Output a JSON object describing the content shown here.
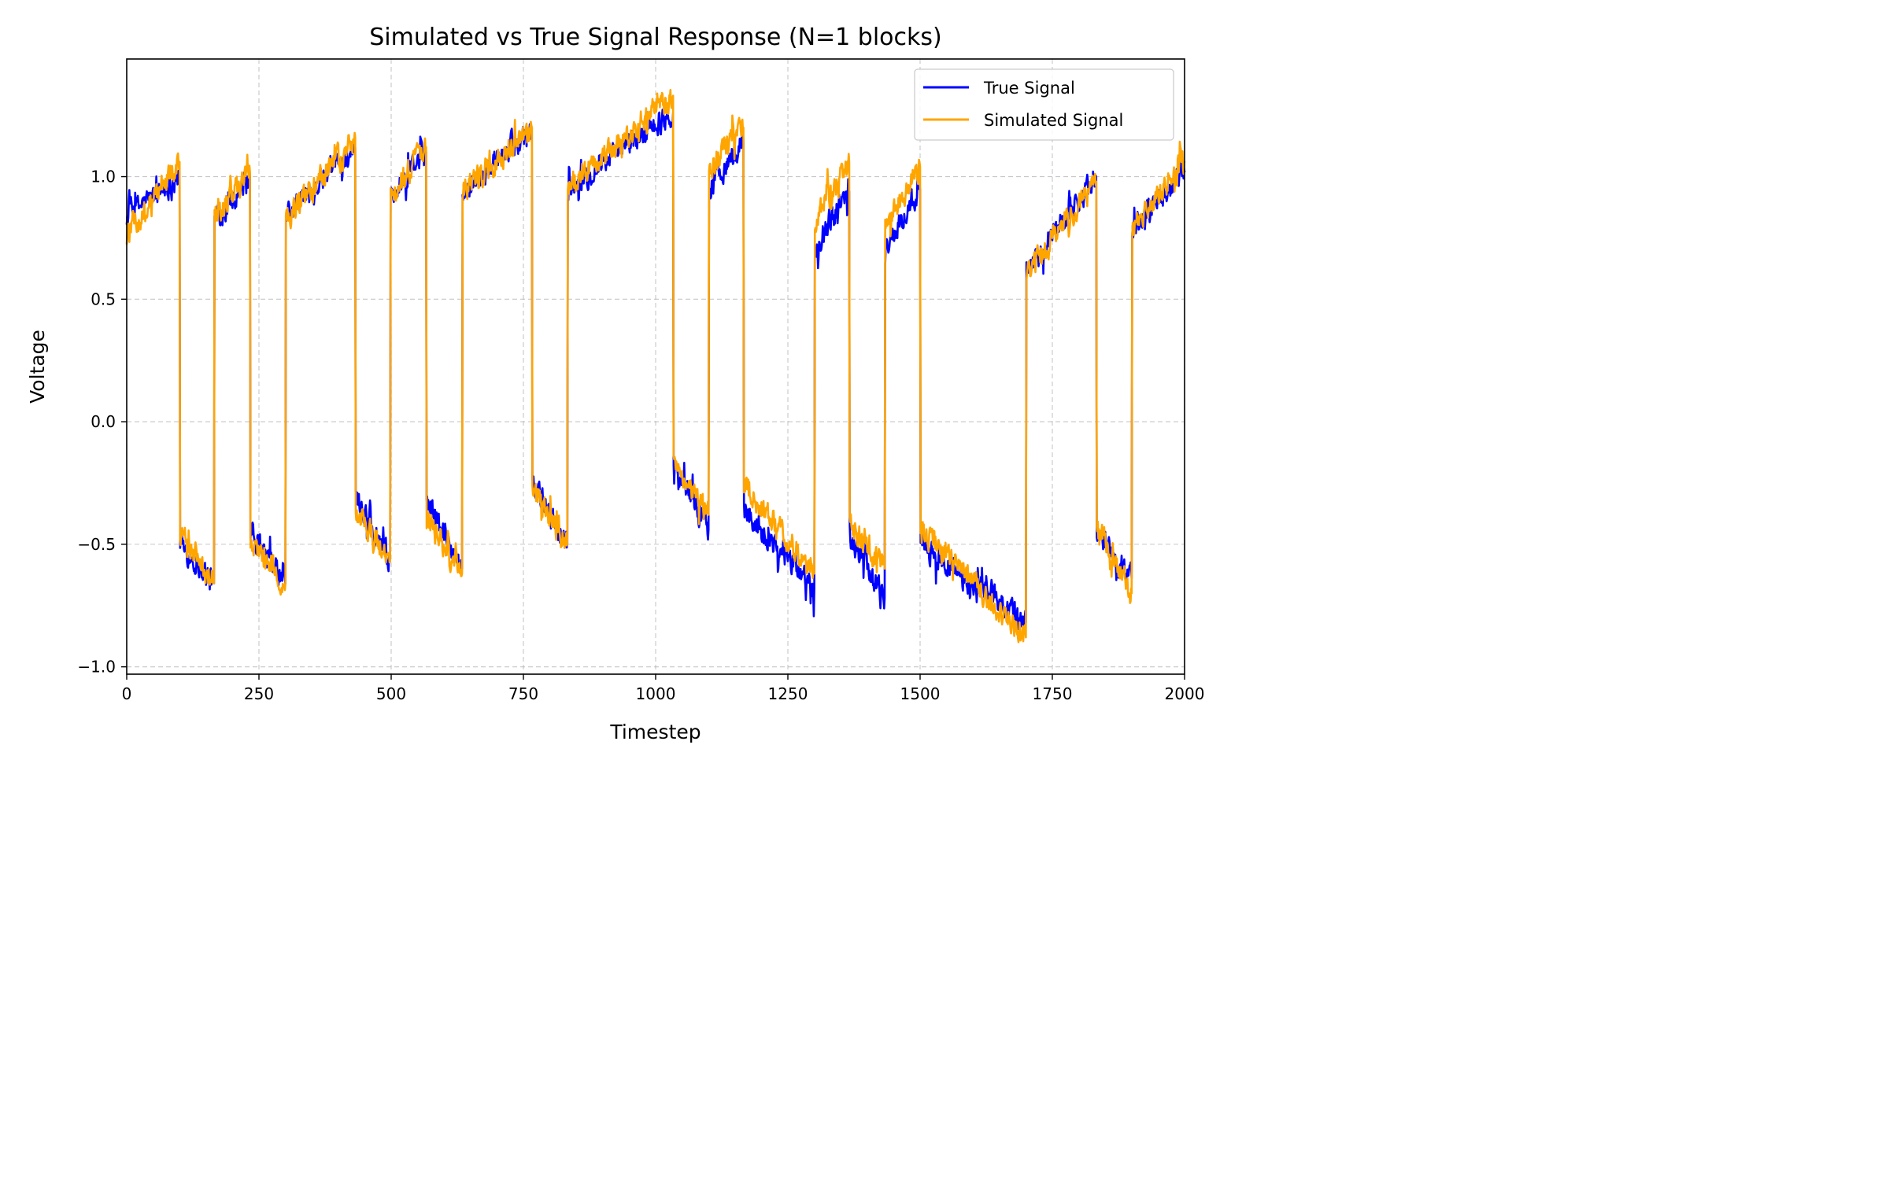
{
  "colors": {
    "true_signal": "#0000ff",
    "simulated_signal": "#ffa500",
    "background": "#ffffff"
  },
  "chart_data": {
    "type": "line",
    "title": "Simulated vs True Signal Response (N=1 blocks)",
    "xlabel": "Timestep",
    "ylabel": "Voltage",
    "xlim": [
      0,
      2000
    ],
    "ylim": [
      -1.03,
      1.48
    ],
    "xticks": [
      0,
      250,
      500,
      750,
      1000,
      1250,
      1500,
      1750,
      2000
    ],
    "xtick_labels": [
      "0",
      "250",
      "500",
      "750",
      "1000",
      "1250",
      "1500",
      "1750",
      "2000"
    ],
    "yticks": [
      -1.0,
      -0.5,
      0.0,
      0.5,
      1.0
    ],
    "ytick_labels": [
      "−1.0",
      "−0.5",
      "0.0",
      "0.5",
      "1.0"
    ],
    "grid": true,
    "legend_position": "top-right",
    "series": [
      {
        "name": "True Signal",
        "color": "#0000ff",
        "points": [
          [
            0,
            0.84
          ],
          [
            100,
            1.0
          ],
          [
            101,
            -0.5
          ],
          [
            165,
            -0.66
          ],
          [
            166,
            0.82
          ],
          [
            233,
            1.0
          ],
          [
            234,
            -0.46
          ],
          [
            300,
            -0.66
          ],
          [
            301,
            0.84
          ],
          [
            432,
            1.12
          ],
          [
            433,
            -0.3
          ],
          [
            498,
            -0.56
          ],
          [
            499,
            0.92
          ],
          [
            566,
            1.1
          ],
          [
            567,
            -0.32
          ],
          [
            634,
            -0.6
          ],
          [
            635,
            0.94
          ],
          [
            766,
            1.2
          ],
          [
            767,
            -0.26
          ],
          [
            833,
            -0.5
          ],
          [
            834,
            0.95
          ],
          [
            1033,
            1.26
          ],
          [
            1034,
            -0.18
          ],
          [
            1100,
            -0.44
          ],
          [
            1101,
            0.96
          ],
          [
            1166,
            1.14
          ],
          [
            1167,
            -0.36
          ],
          [
            1300,
            -0.68
          ],
          [
            1301,
            0.72
          ],
          [
            1366,
            0.94
          ],
          [
            1367,
            -0.46
          ],
          [
            1433,
            -0.72
          ],
          [
            1434,
            0.7
          ],
          [
            1500,
            0.95
          ],
          [
            1501,
            -0.5
          ],
          [
            1700,
            -0.82
          ],
          [
            1701,
            0.62
          ],
          [
            1833,
            1.0
          ],
          [
            1834,
            -0.46
          ],
          [
            1900,
            -0.64
          ],
          [
            1901,
            0.78
          ],
          [
            2000,
            1.02
          ]
        ]
      },
      {
        "name": "Simulated Signal",
        "color": "#ffa500",
        "points": [
          [
            0,
            0.76
          ],
          [
            100,
            1.06
          ],
          [
            101,
            -0.44
          ],
          [
            165,
            -0.66
          ],
          [
            166,
            0.82
          ],
          [
            233,
            1.02
          ],
          [
            234,
            -0.5
          ],
          [
            300,
            -0.66
          ],
          [
            301,
            0.82
          ],
          [
            432,
            1.16
          ],
          [
            433,
            -0.36
          ],
          [
            498,
            -0.57
          ],
          [
            499,
            0.93
          ],
          [
            566,
            1.12
          ],
          [
            567,
            -0.4
          ],
          [
            634,
            -0.62
          ],
          [
            635,
            0.94
          ],
          [
            766,
            1.2
          ],
          [
            767,
            -0.28
          ],
          [
            833,
            -0.5
          ],
          [
            834,
            0.96
          ],
          [
            1033,
            1.33
          ],
          [
            1034,
            -0.15
          ],
          [
            1100,
            -0.38
          ],
          [
            1101,
            1.04
          ],
          [
            1166,
            1.2
          ],
          [
            1167,
            -0.26
          ],
          [
            1300,
            -0.62
          ],
          [
            1301,
            0.82
          ],
          [
            1366,
            1.06
          ],
          [
            1367,
            -0.42
          ],
          [
            1433,
            -0.6
          ],
          [
            1434,
            0.8
          ],
          [
            1500,
            1.04
          ],
          [
            1501,
            -0.44
          ],
          [
            1700,
            -0.88
          ],
          [
            1701,
            0.6
          ],
          [
            1833,
            0.98
          ],
          [
            1834,
            -0.4
          ],
          [
            1900,
            -0.7
          ],
          [
            1901,
            0.78
          ],
          [
            2000,
            1.06
          ]
        ]
      }
    ]
  }
}
